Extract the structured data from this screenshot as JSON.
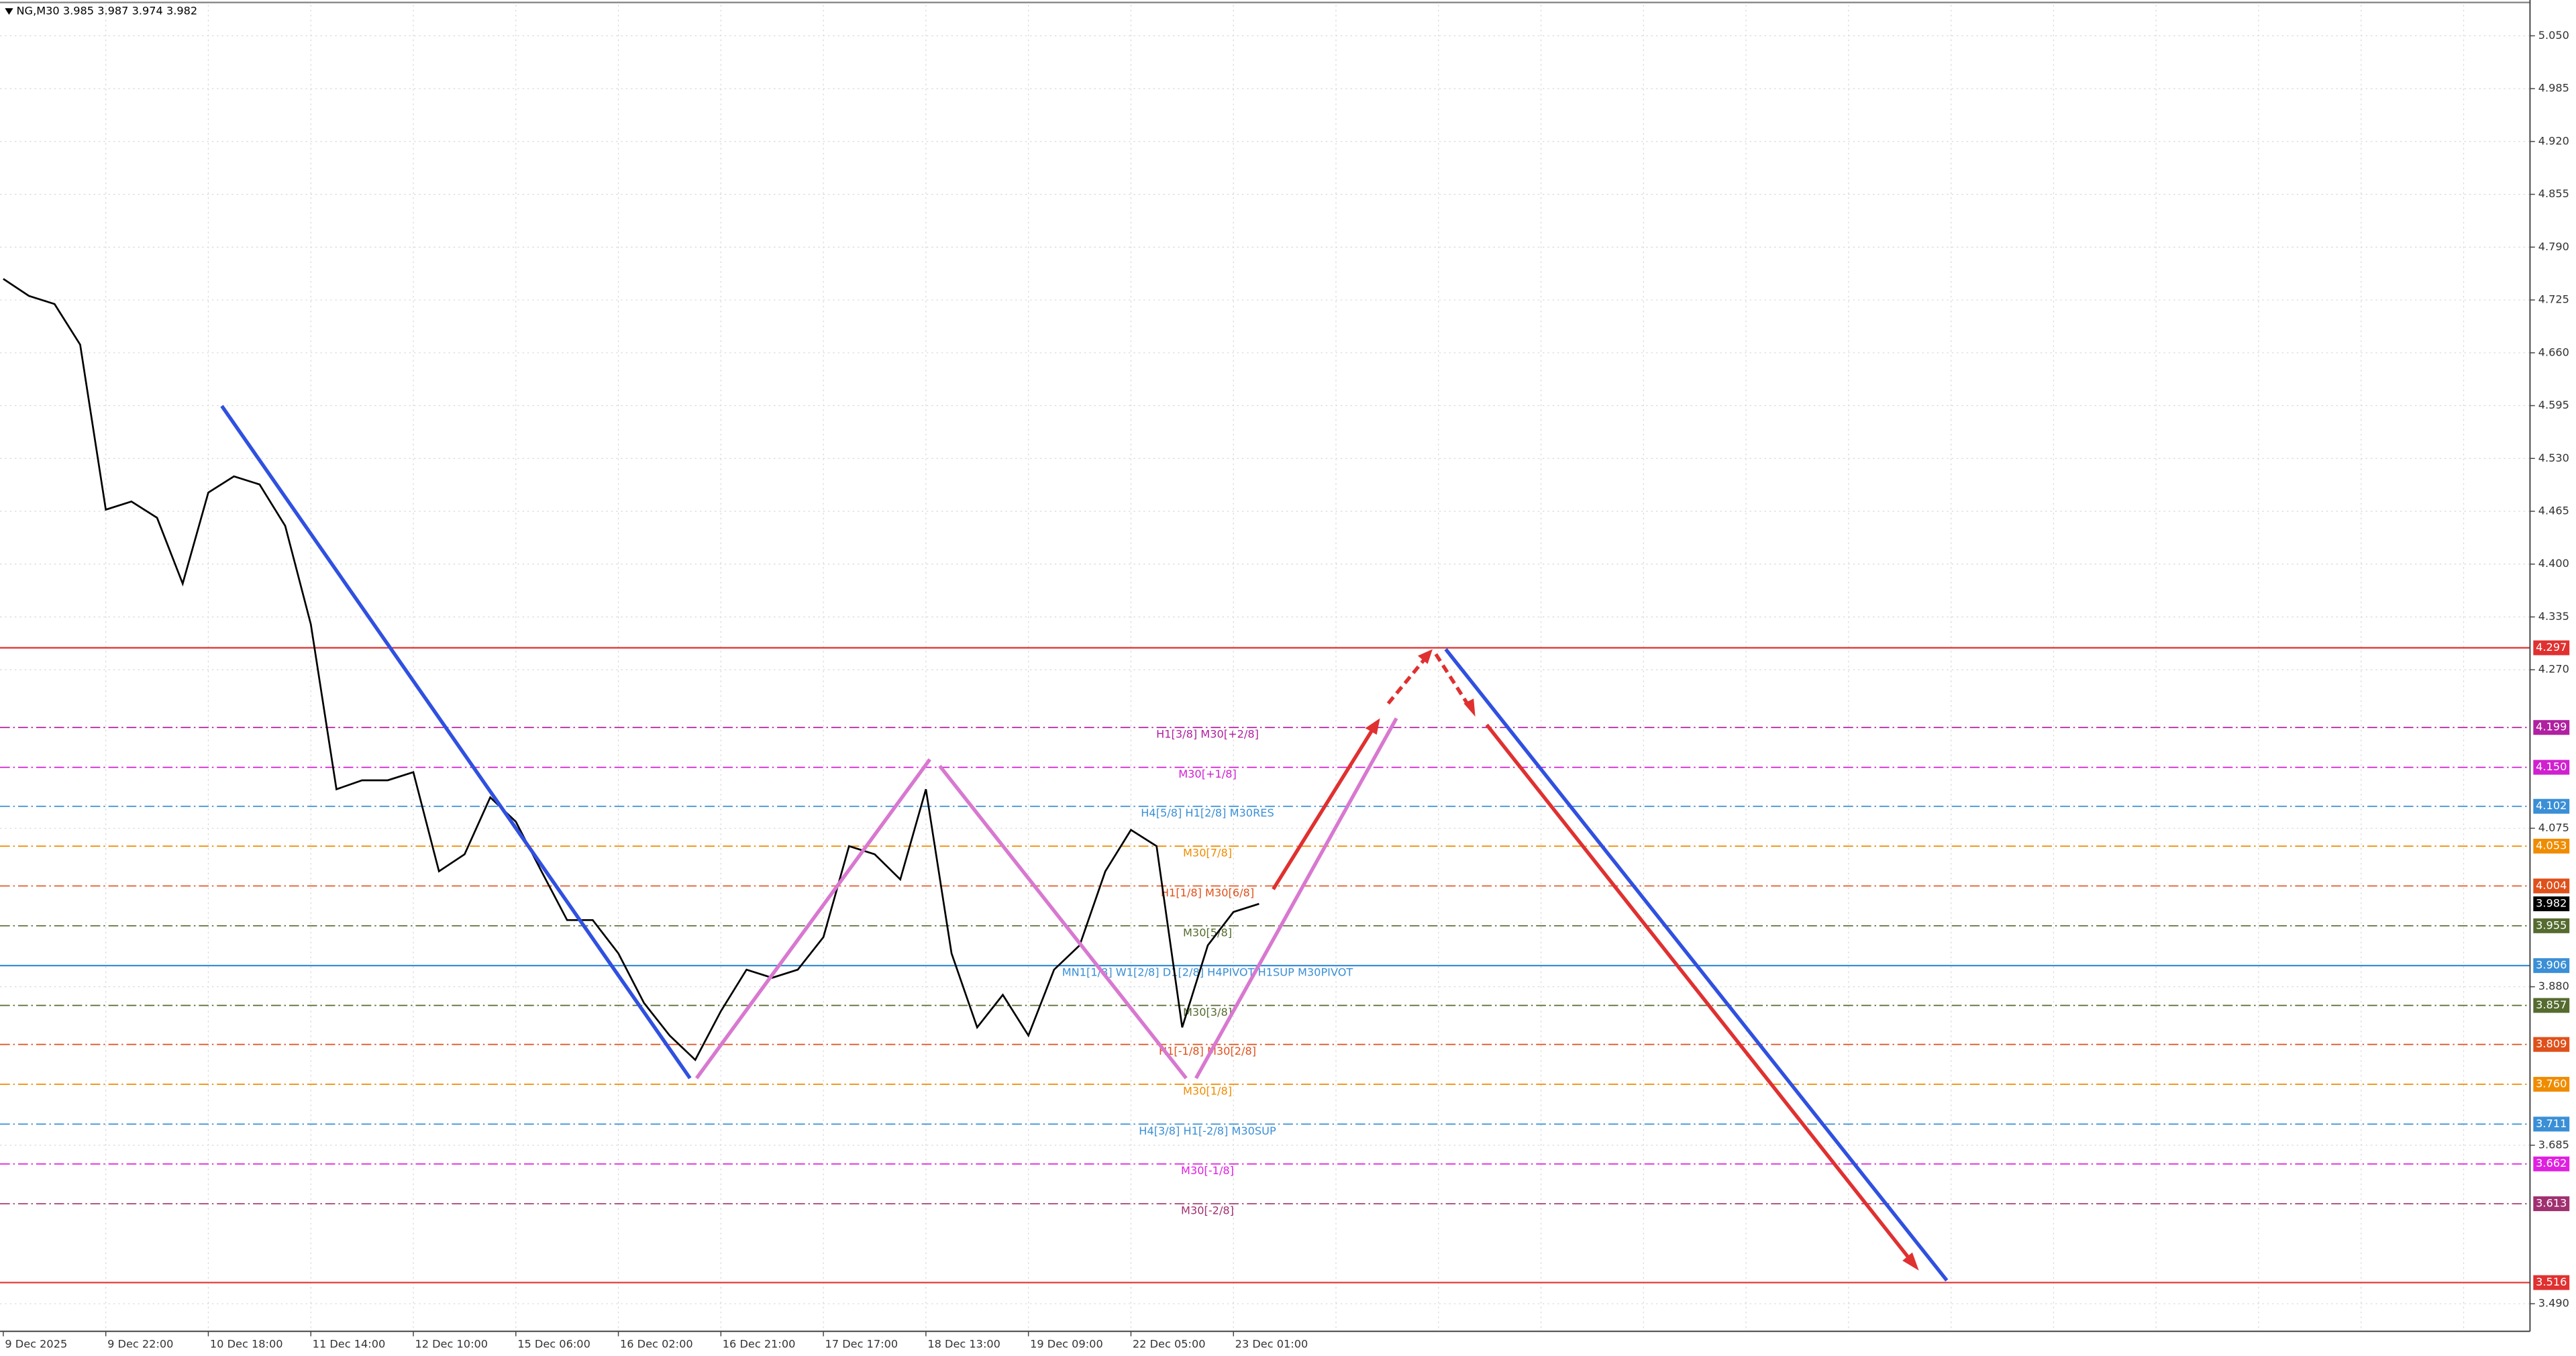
{
  "chart_data": {
    "type": "line",
    "title": "NG,M30  3.985 3.987 3.974 3.982",
    "categories": [
      "9 Dec 2025",
      null,
      null,
      null,
      "9 Dec 22:00",
      null,
      null,
      null,
      "10 Dec 18:00",
      null,
      null,
      null,
      "11 Dec 14:00",
      null,
      null,
      null,
      "12 Dec 10:00",
      null,
      null,
      null,
      "15 Dec 06:00",
      null,
      null,
      null,
      "16 Dec 02:00",
      null,
      null,
      null,
      "16 Dec 21:00",
      null,
      null,
      null,
      "17 Dec 17:00",
      null,
      null,
      null,
      "18 Dec 13:00",
      null,
      null,
      null,
      "19 Dec 09:00",
      null,
      null,
      null,
      "22 Dec 05:00",
      null,
      null,
      null,
      "23 Dec 01:00",
      null
    ],
    "values": [
      4.751,
      4.73,
      4.72,
      4.67,
      4.467,
      4.477,
      4.457,
      4.376,
      4.488,
      4.508,
      4.498,
      4.447,
      4.326,
      4.123,
      4.134,
      4.134,
      4.144,
      4.022,
      4.043,
      4.113,
      4.083,
      4.022,
      3.962,
      3.962,
      3.921,
      3.86,
      3.82,
      3.79,
      3.85,
      3.901,
      3.891,
      3.901,
      3.941,
      4.053,
      4.043,
      4.012,
      4.123,
      3.921,
      3.83,
      3.87,
      3.82,
      3.901,
      3.931,
      4.022,
      4.073,
      4.053,
      3.83,
      3.931,
      3.972,
      3.982
    ],
    "color": "#000000",
    "ylim": [
      3.456,
      5.088
    ],
    "yticks": [
      {
        "value": 5.05,
        "label": "5.050"
      },
      {
        "value": 4.985,
        "label": "4.985"
      },
      {
        "value": 4.92,
        "label": "4.920"
      },
      {
        "value": 4.855,
        "label": "4.855"
      },
      {
        "value": 4.79,
        "label": "4.790"
      },
      {
        "value": 4.725,
        "label": "4.725"
      },
      {
        "value": 4.66,
        "label": "4.660"
      },
      {
        "value": 4.595,
        "label": "4.595"
      },
      {
        "value": 4.53,
        "label": "4.530"
      },
      {
        "value": 4.465,
        "label": "4.465"
      },
      {
        "value": 4.4,
        "label": "4.400"
      },
      {
        "value": 4.335,
        "label": "4.335"
      },
      {
        "value": 4.27,
        "label": "4.270"
      },
      {
        "value": 4.075,
        "label": "4.075"
      },
      {
        "value": 3.88,
        "label": "3.880"
      },
      {
        "value": 3.685,
        "label": "3.685"
      },
      {
        "value": 3.49,
        "label": "3.490"
      }
    ],
    "grid": true,
    "levels": [
      {
        "value": 4.297,
        "tag": "4.297",
        "color": "#e03030",
        "style": "solid"
      },
      {
        "value": 4.199,
        "tag": "4.199",
        "label": "H1[3/8] M30[+2/8]",
        "color": "#b020a0",
        "style": "dashdot"
      },
      {
        "value": 4.15,
        "tag": "4.150",
        "label": "M30[+1/8]",
        "color": "#d020d0",
        "style": "dashdot"
      },
      {
        "value": 4.102,
        "tag": "4.102",
        "label": "H4[5/8] H1[2/8] M30RES",
        "color": "#3a8fd6",
        "style": "dashdot"
      },
      {
        "value": 4.053,
        "tag": "4.053",
        "label": "M30[7/8]",
        "color": "#f08c00",
        "style": "dashdot"
      },
      {
        "value": 4.004,
        "tag": "4.004",
        "label": "H1[1/8] M30[6/8]",
        "color": "#e0501a",
        "style": "dashdot"
      },
      {
        "value": 3.955,
        "tag": "3.955",
        "label": "M30[5/8]",
        "color": "#556b2f",
        "style": "dashdot"
      },
      {
        "value": 3.906,
        "tag": "3.906",
        "label": "MN1[1/8] W1[2/8] D1[2/8] H4PIVOT H1SUP M30PIVOT",
        "color": "#3a8fd6",
        "style": "solid"
      },
      {
        "value": 3.857,
        "tag": "3.857",
        "label": "M30[3/8]",
        "color": "#556b2f",
        "style": "dashdot"
      },
      {
        "value": 3.809,
        "tag": "3.809",
        "label": "H1[-1/8] M30[2/8]",
        "color": "#e0501a",
        "style": "dashdot"
      },
      {
        "value": 3.76,
        "tag": "3.760",
        "label": "M30[1/8]",
        "color": "#f08c00",
        "style": "dashdot"
      },
      {
        "value": 3.711,
        "tag": "3.711",
        "label": "H4[3/8] H1[-2/8] M30SUP",
        "color": "#3a8fd6",
        "style": "dashdot"
      },
      {
        "value": 3.662,
        "tag": "3.662",
        "label": "M30[-1/8]",
        "color": "#e020e0",
        "style": "dashdot"
      },
      {
        "value": 3.613,
        "tag": "3.613",
        "label": "M30[-2/8]",
        "color": "#a03070",
        "style": "dashdot"
      },
      {
        "value": 3.516,
        "tag": "3.516",
        "color": "#e03030",
        "style": "solid"
      }
    ],
    "last_price": {
      "value": 3.982,
      "tag": "3.982",
      "color": "#000000"
    }
  }
}
